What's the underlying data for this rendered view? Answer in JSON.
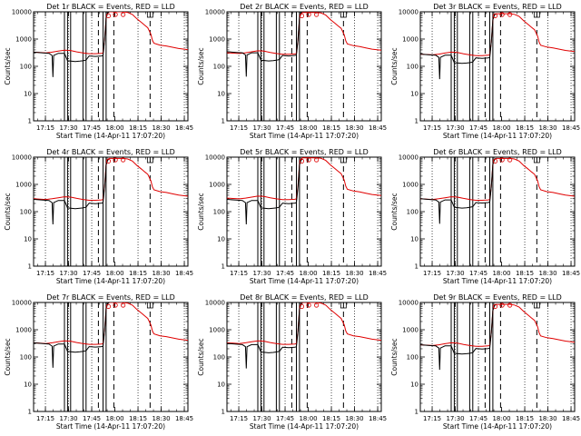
{
  "figure": {
    "background": "#ffffff",
    "colors": {
      "events": "#000000",
      "lld": "#e00000",
      "markers": "#000000"
    }
  },
  "chart_data": {
    "type": "line",
    "shared": {
      "xlabel": "Start Time (14-Apr-11 17:07:20)",
      "ylabel": "Counts/sec",
      "yscale": "log",
      "ylim": [
        1,
        10000
      ],
      "xlim_minutes_after_17_07_20": [
        0,
        100
      ],
      "yticks": [
        "1",
        "10",
        "100",
        "1000",
        "10000"
      ],
      "xticks": [
        {
          "label": "17:15",
          "t": 7.67
        },
        {
          "label": "17:30",
          "t": 22.67
        },
        {
          "label": "17:45",
          "t": 37.67
        },
        {
          "label": "18:00",
          "t": 52.67
        },
        {
          "label": "18:15",
          "t": 67.67
        },
        {
          "label": "18:30",
          "t": 82.67
        },
        {
          "label": "18:45",
          "t": 97.67
        }
      ],
      "dotted_lines_t": [
        7.67,
        22.67,
        37.67,
        67.67,
        82.67,
        97.67
      ],
      "dashed_lines_t": [
        42,
        52,
        75.5
      ],
      "solid_lines_t": [
        20,
        22,
        24,
        32,
        34,
        45,
        47
      ]
    },
    "panels": [
      {
        "title": "Det 1r BLACK = Events, RED = LLD",
        "scale": 1.0,
        "events_gap_scale": 1.0
      },
      {
        "title": "Det 2r BLACK = Events, RED = LLD",
        "scale": 0.95,
        "events_gap_scale": 1.1
      },
      {
        "title": "Det 3r BLACK = Events, RED = LLD",
        "scale": 0.85,
        "events_gap_scale": 1.0
      },
      {
        "title": "Det 4r BLACK = Events, RED = LLD",
        "scale": 0.9,
        "events_gap_scale": 0.95
      },
      {
        "title": "Det 5r BLACK = Events, RED = LLD",
        "scale": 0.95,
        "events_gap_scale": 0.9
      },
      {
        "title": "Det 6r BLACK = Events, RED = LLD",
        "scale": 0.9,
        "events_gap_scale": 1.0
      },
      {
        "title": "Det 7r BLACK = Events, RED = LLD",
        "scale": 1.0,
        "events_gap_scale": 1.0
      },
      {
        "title": "Det 8r BLACK = Events, RED = LLD",
        "scale": 1.0,
        "events_gap_scale": 0.95
      },
      {
        "title": "Det 9r BLACK = Events, RED = LLD",
        "scale": 0.85,
        "events_gap_scale": 1.0
      }
    ],
    "series": [
      {
        "name": "LLD",
        "color": "#e00000",
        "points": [
          [
            0,
            330
          ],
          [
            4,
            320
          ],
          [
            8,
            310
          ],
          [
            12,
            330
          ],
          [
            16,
            360
          ],
          [
            20,
            390
          ],
          [
            24,
            380
          ],
          [
            28,
            340
          ],
          [
            32,
            310
          ],
          [
            36,
            290
          ],
          [
            40,
            290
          ],
          [
            44,
            300
          ],
          [
            45,
            310
          ],
          [
            46,
            900
          ],
          [
            47,
            6000
          ],
          [
            48,
            9000
          ],
          [
            49,
            10000
          ],
          [
            52,
            10000
          ],
          [
            55,
            10000
          ],
          [
            58,
            10000
          ],
          [
            61,
            9500
          ],
          [
            64,
            8000
          ],
          [
            67,
            5500
          ],
          [
            70,
            4000
          ],
          [
            72,
            3200
          ],
          [
            74,
            2600
          ],
          [
            76,
            1500
          ],
          [
            77,
            900
          ],
          [
            78,
            700
          ],
          [
            82,
            600
          ],
          [
            86,
            560
          ],
          [
            90,
            500
          ],
          [
            94,
            450
          ],
          [
            100,
            410
          ]
        ]
      },
      {
        "name": "Events",
        "color": "#000000",
        "points": [
          [
            0,
            330
          ],
          [
            6,
            310
          ],
          [
            10,
            300
          ],
          [
            12,
            250
          ],
          [
            12.5,
            40
          ],
          [
            13,
            250
          ],
          [
            16,
            300
          ],
          [
            20,
            300
          ],
          [
            22,
            160
          ],
          [
            27,
            150
          ],
          [
            30,
            155
          ],
          [
            32,
            160
          ],
          [
            34,
            170
          ],
          [
            36,
            240
          ],
          [
            40,
            230
          ],
          [
            44,
            240
          ],
          [
            45,
            250
          ],
          [
            46,
            900
          ],
          [
            47,
            6000
          ],
          [
            48,
            9000
          ],
          [
            49,
            10000
          ]
        ]
      }
    ],
    "markers": [
      {
        "shape": "circle",
        "t": 48.5,
        "y": 9000
      },
      {
        "shape": "circle",
        "t": 53,
        "y": 10000
      },
      {
        "shape": "circle",
        "t": 58,
        "y": 10000
      },
      {
        "shape": "square",
        "t": 75.5,
        "y": 10000
      }
    ]
  }
}
